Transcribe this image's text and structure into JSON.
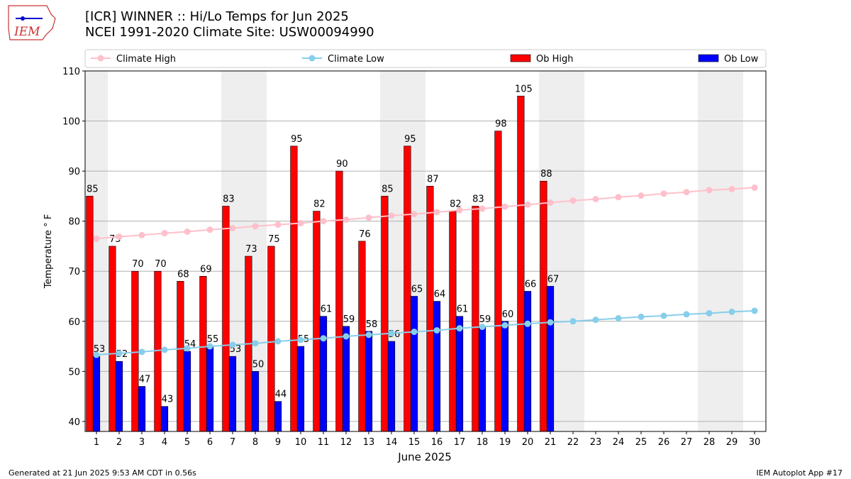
{
  "chart_data": {
    "type": "bar",
    "title": "[ICR] WINNER :: Hi/Lo Temps for Jun 2025",
    "subtitle": "NCEI 1991-2020 Climate Site: USW00094990",
    "x_label": "June 2025",
    "y_label": "Temperature ° F",
    "x": [
      1,
      2,
      3,
      4,
      5,
      6,
      7,
      8,
      9,
      10,
      11,
      12,
      13,
      14,
      15,
      16,
      17,
      18,
      19,
      20,
      21,
      22,
      23,
      24,
      25,
      26,
      27,
      28,
      29,
      30
    ],
    "xlim": [
      0.5,
      30.5
    ],
    "xticks": [
      1,
      2,
      3,
      4,
      5,
      6,
      7,
      8,
      9,
      10,
      11,
      12,
      13,
      14,
      15,
      16,
      17,
      18,
      19,
      20,
      21,
      22,
      23,
      24,
      25,
      26,
      27,
      28,
      29,
      30
    ],
    "ylim": [
      38,
      110
    ],
    "yticks": [
      40,
      50,
      60,
      70,
      80,
      90,
      100,
      110
    ],
    "grid": true,
    "legend": "top",
    "shaded_days": [
      1,
      7,
      8,
      14,
      15,
      21,
      22,
      28,
      29
    ],
    "series": [
      {
        "name": "Climate High",
        "kind": "line",
        "color": "#ffc0cb",
        "values": [
          76.5,
          76.9,
          77.2,
          77.6,
          77.9,
          78.3,
          78.6,
          79.0,
          79.3,
          79.6,
          80.0,
          80.3,
          80.7,
          81.1,
          81.4,
          81.8,
          82.2,
          82.5,
          82.9,
          83.3,
          83.7,
          84.1,
          84.4,
          84.8,
          85.1,
          85.5,
          85.8,
          86.2,
          86.4,
          86.7
        ]
      },
      {
        "name": "Climate Low",
        "kind": "line",
        "color": "#87ceeb",
        "values": [
          53.3,
          53.6,
          53.9,
          54.3,
          54.6,
          55.0,
          55.3,
          55.6,
          56.0,
          56.3,
          56.6,
          57.0,
          57.3,
          57.6,
          57.9,
          58.2,
          58.6,
          58.9,
          59.2,
          59.5,
          59.8,
          60.0,
          60.3,
          60.6,
          60.9,
          61.1,
          61.4,
          61.6,
          61.9,
          62.1
        ]
      },
      {
        "name": "Ob High",
        "kind": "bar",
        "color": "#ff0000",
        "values": [
          85,
          75,
          70,
          70,
          68,
          69,
          83,
          73,
          75,
          95,
          82,
          90,
          76,
          85,
          95,
          87,
          82,
          83,
          98,
          105,
          88,
          null,
          null,
          null,
          null,
          null,
          null,
          null,
          null,
          null
        ]
      },
      {
        "name": "Ob Low",
        "kind": "bar",
        "color": "#0000ff",
        "values": [
          53,
          52,
          47,
          43,
          54,
          55,
          53,
          50,
          44,
          55,
          61,
          59,
          58,
          56,
          65,
          64,
          61,
          59,
          60,
          66,
          67,
          null,
          null,
          null,
          null,
          null,
          null,
          null,
          null,
          null
        ]
      }
    ]
  },
  "logo_text": "IEM",
  "footer_left": "Generated at 21 Jun 2025 9:53 AM CDT in 0.56s",
  "footer_right": "IEM Autoplot App #17"
}
